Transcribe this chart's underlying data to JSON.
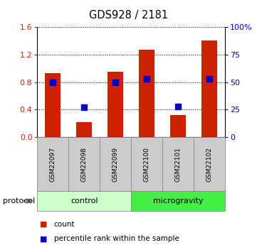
{
  "title": "GDS928 / 2181",
  "samples": [
    "GSM22097",
    "GSM22098",
    "GSM22099",
    "GSM22100",
    "GSM22101",
    "GSM22102"
  ],
  "counts": [
    0.93,
    0.22,
    0.95,
    1.27,
    0.32,
    1.4
  ],
  "percentiles": [
    50,
    27,
    50,
    53,
    28,
    53
  ],
  "ylim_left": [
    0,
    1.6
  ],
  "ylim_right": [
    0,
    100
  ],
  "left_ticks": [
    0,
    0.4,
    0.8,
    1.2,
    1.6
  ],
  "right_ticks": [
    0,
    25,
    50,
    75,
    100
  ],
  "right_tick_labels": [
    "0",
    "25",
    "50",
    "75",
    "100%"
  ],
  "bar_color": "#cc2200",
  "dot_color": "#0000cc",
  "groups": [
    {
      "label": "control",
      "start": 0,
      "end": 3,
      "color": "#ccffcc"
    },
    {
      "label": "microgravity",
      "start": 3,
      "end": 6,
      "color": "#44ee44"
    }
  ],
  "protocol_label": "protocol",
  "legend_items": [
    "count",
    "percentile rank within the sample"
  ],
  "tick_label_color_left": "#cc2200",
  "tick_label_color_right": "#0000cc",
  "bar_width": 0.5,
  "dot_size": 40,
  "figsize": [
    3.61,
    3.45
  ],
  "dpi": 100
}
